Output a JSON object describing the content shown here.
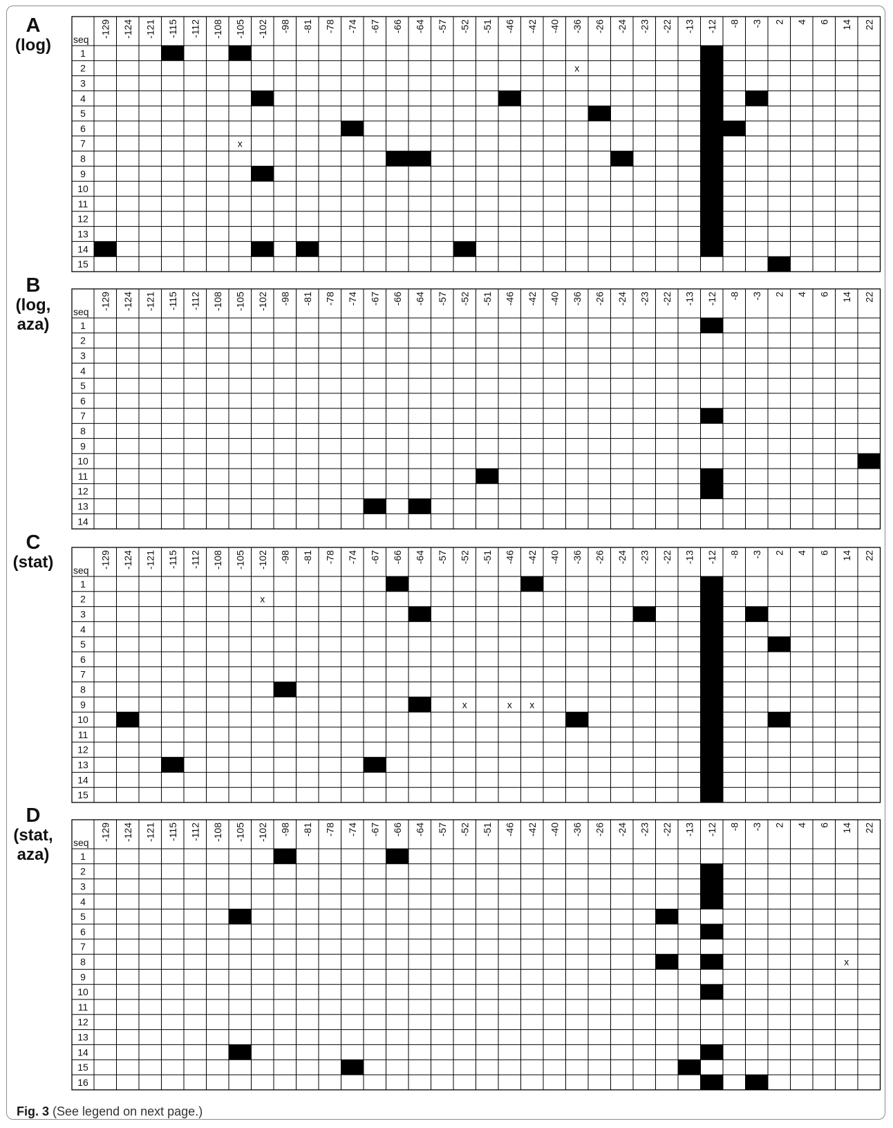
{
  "columns": [
    "-129",
    "-124",
    "-121",
    "-115",
    "-112",
    "-108",
    "-105",
    "-102",
    "-98",
    "-81",
    "-78",
    "-74",
    "-67",
    "-66",
    "-64",
    "-57",
    "-52",
    "-51",
    "-46",
    "-42",
    "-40",
    "-36",
    "-26",
    "-24",
    "-23",
    "-22",
    "-13",
    "-12",
    "-8",
    "-3",
    "2",
    "4",
    "6",
    "14",
    "22"
  ],
  "seq_header": "seq",
  "unmethylated_mark": "x",
  "panels": [
    {
      "letter": "A",
      "condition": [
        "(log)"
      ],
      "rows": [
        "1",
        "2",
        "3",
        "4",
        "5",
        "6",
        "7",
        "8",
        "9",
        "10",
        "11",
        "12",
        "13",
        "14",
        "15"
      ],
      "methylated": [
        [
          "1",
          "-115"
        ],
        [
          "1",
          "-105"
        ],
        [
          "1",
          "-12"
        ],
        [
          "2",
          "-12"
        ],
        [
          "3",
          "-12"
        ],
        [
          "4",
          "-102"
        ],
        [
          "4",
          "-46"
        ],
        [
          "4",
          "-12"
        ],
        [
          "4",
          "-3"
        ],
        [
          "5",
          "-26"
        ],
        [
          "5",
          "-12"
        ],
        [
          "6",
          "-74"
        ],
        [
          "6",
          "-12"
        ],
        [
          "6",
          "-8"
        ],
        [
          "7",
          "-12"
        ],
        [
          "8",
          "-66"
        ],
        [
          "8",
          "-64"
        ],
        [
          "8",
          "-24"
        ],
        [
          "8",
          "-12"
        ],
        [
          "9",
          "-102"
        ],
        [
          "9",
          "-12"
        ],
        [
          "10",
          "-12"
        ],
        [
          "11",
          "-12"
        ],
        [
          "12",
          "-12"
        ],
        [
          "13",
          "-12"
        ],
        [
          "14",
          "-129"
        ],
        [
          "14",
          "-102"
        ],
        [
          "14",
          "-81"
        ],
        [
          "14",
          "-52"
        ],
        [
          "14",
          "-12"
        ],
        [
          "15",
          "2"
        ]
      ],
      "unknown": [
        [
          "2",
          "-36"
        ],
        [
          "7",
          "-105"
        ]
      ]
    },
    {
      "letter": "B",
      "condition": [
        "(log,",
        "aza)"
      ],
      "rows": [
        "1",
        "2",
        "3",
        "4",
        "5",
        "6",
        "7",
        "8",
        "9",
        "10",
        "11",
        "12",
        "13",
        "14"
      ],
      "methylated": [
        [
          "1",
          "-12"
        ],
        [
          "7",
          "-12"
        ],
        [
          "10",
          "22"
        ],
        [
          "11",
          "-51"
        ],
        [
          "11",
          "-12"
        ],
        [
          "12",
          "-12"
        ],
        [
          "13",
          "-67"
        ],
        [
          "13",
          "-64"
        ]
      ],
      "unknown": []
    },
    {
      "letter": "C",
      "condition": [
        "(stat)"
      ],
      "rows": [
        "1",
        "2",
        "3",
        "4",
        "5",
        "6",
        "7",
        "8",
        "9",
        "10",
        "11",
        "12",
        "13",
        "14",
        "15"
      ],
      "methylated": [
        [
          "1",
          "-66"
        ],
        [
          "1",
          "-42"
        ],
        [
          "1",
          "-12"
        ],
        [
          "2",
          "-12"
        ],
        [
          "3",
          "-64"
        ],
        [
          "3",
          "-23"
        ],
        [
          "3",
          "-12"
        ],
        [
          "3",
          "-3"
        ],
        [
          "4",
          "-12"
        ],
        [
          "5",
          "-12"
        ],
        [
          "5",
          "2"
        ],
        [
          "6",
          "-12"
        ],
        [
          "7",
          "-12"
        ],
        [
          "8",
          "-98"
        ],
        [
          "8",
          "-12"
        ],
        [
          "9",
          "-64"
        ],
        [
          "9",
          "-12"
        ],
        [
          "10",
          "-124"
        ],
        [
          "10",
          "-36"
        ],
        [
          "10",
          "-12"
        ],
        [
          "10",
          "2"
        ],
        [
          "11",
          "-12"
        ],
        [
          "12",
          "-12"
        ],
        [
          "13",
          "-115"
        ],
        [
          "13",
          "-67"
        ],
        [
          "13",
          "-12"
        ],
        [
          "14",
          "-12"
        ],
        [
          "15",
          "-12"
        ]
      ],
      "unknown": [
        [
          "2",
          "-102"
        ],
        [
          "9",
          "-52"
        ],
        [
          "9",
          "-46"
        ],
        [
          "9",
          "-42"
        ]
      ]
    },
    {
      "letter": "D",
      "condition": [
        "(stat,",
        "aza)"
      ],
      "rows": [
        "1",
        "2",
        "3",
        "4",
        "5",
        "6",
        "7",
        "8",
        "9",
        "10",
        "11",
        "12",
        "13",
        "14",
        "15",
        "16"
      ],
      "methylated": [
        [
          "1",
          "-98"
        ],
        [
          "1",
          "-66"
        ],
        [
          "2",
          "-12"
        ],
        [
          "3",
          "-12"
        ],
        [
          "4",
          "-12"
        ],
        [
          "5",
          "-105"
        ],
        [
          "5",
          "-22"
        ],
        [
          "6",
          "-12"
        ],
        [
          "8",
          "-22"
        ],
        [
          "8",
          "-12"
        ],
        [
          "10",
          "-12"
        ],
        [
          "14",
          "-105"
        ],
        [
          "14",
          "-12"
        ],
        [
          "15",
          "-74"
        ],
        [
          "15",
          "-13"
        ],
        [
          "16",
          "-12"
        ],
        [
          "16",
          "-3"
        ]
      ],
      "unknown": [
        [
          "8",
          "14"
        ]
      ]
    }
  ],
  "caption": {
    "label": "Fig. 3",
    "text": "(See legend on next page.)"
  }
}
